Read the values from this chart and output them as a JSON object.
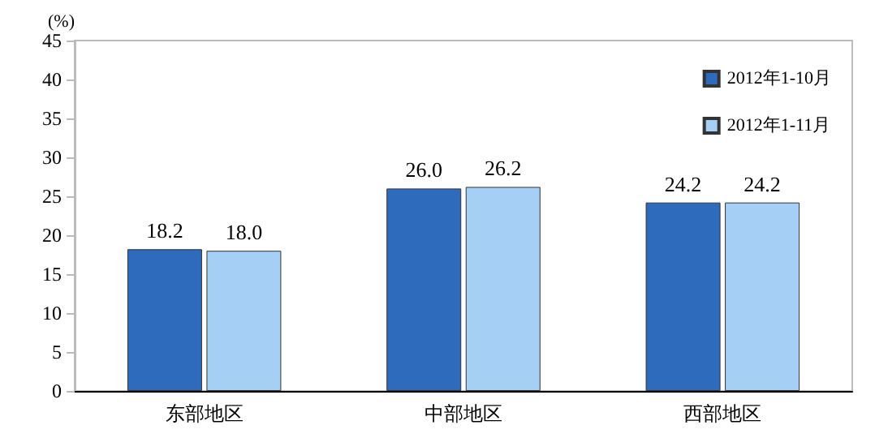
{
  "chart_data": {
    "type": "bar",
    "ylabel": "(%)",
    "categories": [
      "东部地区",
      "中部地区",
      "西部地区"
    ],
    "series": [
      {
        "name": "2012年1-10月",
        "color": "#2e6bbd",
        "values": [
          18.2,
          26.0,
          24.2
        ],
        "value_labels": [
          "18.2",
          "26.0",
          "24.2"
        ]
      },
      {
        "name": "2012年1-11月",
        "color": "#a6cff5",
        "values": [
          18.0,
          26.2,
          24.2
        ],
        "value_labels": [
          "18.0",
          "26.2",
          "24.2"
        ]
      }
    ],
    "ylim": [
      0,
      45
    ],
    "yticks": [
      0,
      5,
      10,
      15,
      20,
      25,
      30,
      35,
      40,
      45
    ],
    "grid": false,
    "legend": "top right"
  }
}
